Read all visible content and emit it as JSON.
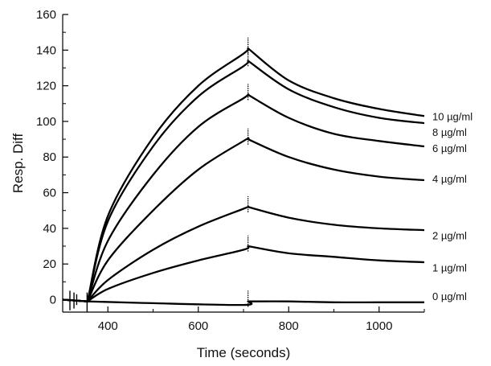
{
  "chart_data": {
    "type": "line",
    "xlabel": "Time (seconds)",
    "ylabel": "Resp. Diff",
    "xlim": [
      300,
      1100
    ],
    "ylim": [
      -7,
      160
    ],
    "x_ticks": [
      400,
      600,
      800,
      1000
    ],
    "y_ticks": [
      0,
      20,
      40,
      60,
      80,
      100,
      120,
      140,
      160
    ],
    "grid": false,
    "injection_start": 355,
    "injection_end": 710,
    "series": [
      {
        "name": "0 µg/ml",
        "x": [
          300,
          355,
          500,
          700,
          710,
          800,
          900,
          1000,
          1100
        ],
        "values": [
          0,
          -1,
          -2,
          -3,
          -1,
          -1,
          -1.5,
          -1.5,
          -1.5
        ]
      },
      {
        "name": "1 µg/ml",
        "x": [
          300,
          355,
          400,
          500,
          600,
          700,
          710,
          800,
          900,
          1000,
          1100
        ],
        "values": [
          0,
          -1,
          6,
          15,
          22,
          28,
          30,
          26,
          24,
          22,
          21
        ]
      },
      {
        "name": "2 µg/ml",
        "x": [
          300,
          355,
          400,
          500,
          600,
          700,
          710,
          800,
          900,
          1000,
          1100
        ],
        "values": [
          0,
          -1,
          11,
          28,
          41,
          51,
          52,
          46,
          42,
          40,
          39
        ]
      },
      {
        "name": "4 µg/ml",
        "x": [
          300,
          355,
          400,
          500,
          600,
          700,
          710,
          800,
          900,
          1000,
          1100
        ],
        "values": [
          0,
          -1,
          22,
          50,
          73,
          89,
          90,
          80,
          73,
          69,
          67
        ]
      },
      {
        "name": "6 µg/ml",
        "x": [
          300,
          355,
          400,
          500,
          600,
          700,
          710,
          800,
          900,
          1000,
          1100
        ],
        "values": [
          0,
          -1,
          33,
          70,
          97,
          113,
          115,
          102,
          93,
          89,
          86
        ]
      },
      {
        "name": "8 µg/ml",
        "x": [
          300,
          355,
          400,
          500,
          600,
          700,
          710,
          800,
          900,
          1000,
          1100
        ],
        "values": [
          0,
          -1,
          44,
          86,
          114,
          131,
          134,
          118,
          108,
          102,
          99
        ]
      },
      {
        "name": "10 µg/ml",
        "x": [
          300,
          355,
          400,
          500,
          600,
          700,
          710,
          800,
          900,
          1000,
          1100
        ],
        "values": [
          0,
          -1,
          47,
          91,
          120,
          138,
          141,
          123,
          113,
          107,
          103
        ]
      }
    ],
    "series_labels": [
      {
        "text": "10 µg/ml",
        "y": 103
      },
      {
        "text": "8 µg/ml",
        "y": 94
      },
      {
        "text": "6 µg/ml",
        "y": 85
      },
      {
        "text": "4 µg/ml",
        "y": 68
      },
      {
        "text": "2 µg/ml",
        "y": 36
      },
      {
        "text": "1 µg/ml",
        "y": 18
      },
      {
        "text": "0 µg/ml",
        "y": 2
      }
    ]
  }
}
